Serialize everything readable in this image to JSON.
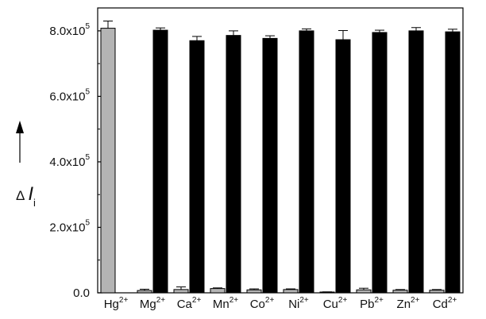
{
  "chart_data": {
    "type": "bar",
    "title": "",
    "xlabel": "",
    "ylabel": {
      "prefix": "Δ",
      "main": "I",
      "subscript": "i"
    },
    "ylim": [
      0,
      870000
    ],
    "grid": false,
    "y_ticks": [
      {
        "value": 0,
        "mantissa": "0.0",
        "exponent": ""
      },
      {
        "value": 200000,
        "mantissa": "2.0x10",
        "exponent": "5"
      },
      {
        "value": 400000,
        "mantissa": "4.0x10",
        "exponent": "5"
      },
      {
        "value": 600000,
        "mantissa": "6.0x10",
        "exponent": "5"
      },
      {
        "value": 800000,
        "mantissa": "8.0x10",
        "exponent": "5"
      }
    ],
    "categories": [
      {
        "base": "Hg",
        "charge": "2+"
      },
      {
        "base": "Mg",
        "charge": "2+"
      },
      {
        "base": "Ca",
        "charge": "2+"
      },
      {
        "base": "Mn",
        "charge": "2+"
      },
      {
        "base": "Co",
        "charge": "2+"
      },
      {
        "base": "Ni",
        "charge": "2+"
      },
      {
        "base": "Cu",
        "charge": "2+"
      },
      {
        "base": "Pb",
        "charge": "2+"
      },
      {
        "base": "Zn",
        "charge": "2+"
      },
      {
        "base": "Cd",
        "charge": "2+"
      }
    ],
    "series": [
      {
        "color": "#b4b4b4",
        "values": [
          808000,
          7000,
          10000,
          13000,
          9000,
          10000,
          2000,
          9000,
          8000,
          8000
        ],
        "errors": [
          22000,
          4000,
          8000,
          2000,
          3000,
          2000,
          1000,
          5000,
          2000,
          2000
        ]
      },
      {
        "color": "#000000",
        "values": [
          null,
          802000,
          770000,
          786000,
          777000,
          800000,
          773000,
          795000,
          800000,
          797000
        ],
        "errors": [
          null,
          7000,
          13000,
          14000,
          8000,
          6000,
          28000,
          7000,
          10000,
          8000
        ]
      }
    ]
  }
}
